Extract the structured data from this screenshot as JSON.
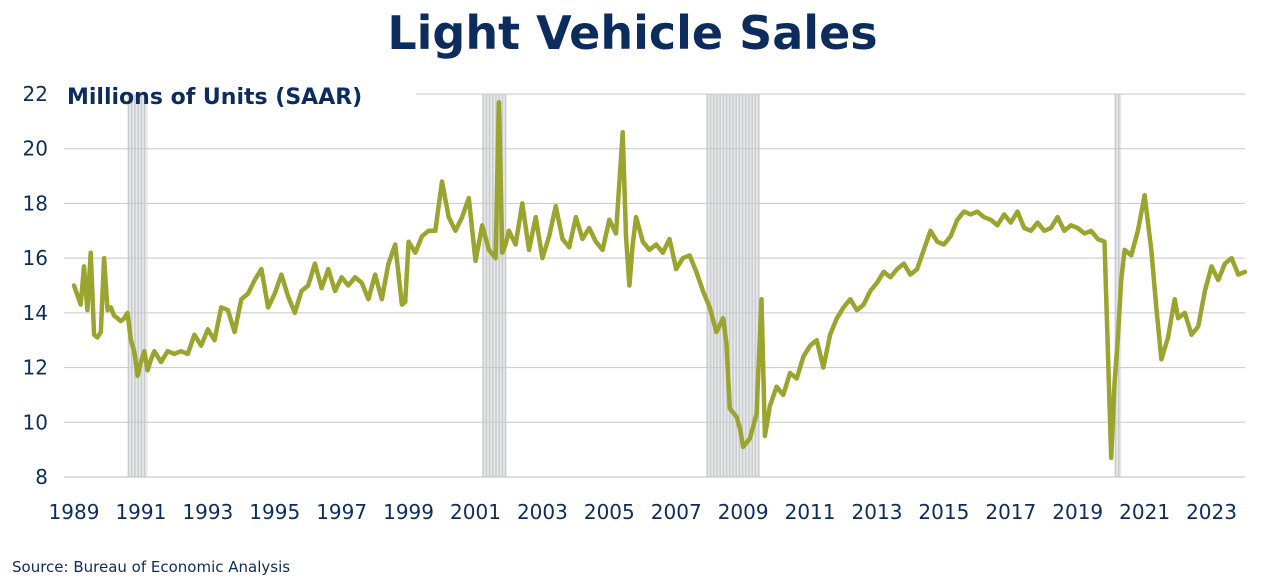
{
  "title": "Light Vehicle Sales",
  "source": "Source:  Bureau of Economic Analysis",
  "colors": {
    "line": "#9aa42e",
    "title": "#0c2c5e",
    "recession": "#c9cccf",
    "grid": "#c8c8c8"
  },
  "chart_data": {
    "type": "line",
    "title": "Light Vehicle Sales",
    "ylabel": "Millions of Units (SAAR)",
    "xlabel": "",
    "ylim": [
      8,
      22
    ],
    "xlim": [
      1989.0,
      2024.0
    ],
    "yticks": [
      8,
      10,
      12,
      14,
      16,
      18,
      20,
      22
    ],
    "xticks": [
      "1989",
      "1991",
      "1993",
      "1995",
      "1997",
      "1999",
      "2001",
      "2003",
      "2005",
      "2007",
      "2009",
      "2011",
      "2013",
      "2015",
      "2017",
      "2019",
      "2021",
      "2023"
    ],
    "grid": "horizontal",
    "recessions": [
      {
        "start": 1990.6,
        "end": 1991.2
      },
      {
        "start": 2001.2,
        "end": 2001.9
      },
      {
        "start": 2007.9,
        "end": 2009.5
      },
      {
        "start": 2020.1,
        "end": 2020.3
      }
    ],
    "series": [
      {
        "x": [
          1989.0,
          1989.2,
          1989.3,
          1989.4,
          1989.5,
          1989.6,
          1989.7,
          1989.8,
          1989.9,
          1990.0,
          1990.1,
          1990.2,
          1990.3,
          1990.4,
          1990.5,
          1990.6,
          1990.7,
          1990.8,
          1990.9,
          1991.0,
          1991.1,
          1991.2,
          1991.3,
          1991.4,
          1991.6,
          1991.8,
          1992.0,
          1992.2,
          1992.4,
          1992.6,
          1992.8,
          1993.0,
          1993.2,
          1993.4,
          1993.6,
          1993.8,
          1994.0,
          1994.2,
          1994.4,
          1994.6,
          1994.8,
          1995.0,
          1995.2,
          1995.4,
          1995.6,
          1995.8,
          1996.0,
          1996.2,
          1996.4,
          1996.6,
          1996.8,
          1997.0,
          1997.2,
          1997.4,
          1997.6,
          1997.8,
          1998.0,
          1998.2,
          1998.4,
          1998.6,
          1998.8,
          1998.9,
          1999.0,
          1999.2,
          1999.4,
          1999.6,
          1999.8,
          2000.0,
          2000.2,
          2000.4,
          2000.6,
          2000.8,
          2001.0,
          2001.2,
          2001.4,
          2001.6,
          2001.7,
          2001.8,
          2001.9,
          2002.0,
          2002.2,
          2002.4,
          2002.6,
          2002.8,
          2003.0,
          2003.2,
          2003.4,
          2003.6,
          2003.8,
          2004.0,
          2004.2,
          2004.4,
          2004.6,
          2004.8,
          2005.0,
          2005.2,
          2005.4,
          2005.5,
          2005.6,
          2005.7,
          2005.8,
          2006.0,
          2006.2,
          2006.4,
          2006.6,
          2006.8,
          2007.0,
          2007.2,
          2007.4,
          2007.6,
          2007.8,
          2008.0,
          2008.2,
          2008.4,
          2008.5,
          2008.6,
          2008.8,
          2008.9,
          2009.0,
          2009.2,
          2009.4,
          2009.55,
          2009.65,
          2009.8,
          2010.0,
          2010.2,
          2010.4,
          2010.6,
          2010.8,
          2011.0,
          2011.2,
          2011.4,
          2011.6,
          2011.8,
          2012.0,
          2012.2,
          2012.4,
          2012.6,
          2012.8,
          2013.0,
          2013.2,
          2013.4,
          2013.6,
          2013.8,
          2014.0,
          2014.2,
          2014.4,
          2014.6,
          2014.8,
          2015.0,
          2015.2,
          2015.4,
          2015.6,
          2015.8,
          2016.0,
          2016.2,
          2016.4,
          2016.6,
          2016.8,
          2017.0,
          2017.2,
          2017.4,
          2017.6,
          2017.8,
          2018.0,
          2018.2,
          2018.4,
          2018.6,
          2018.8,
          2019.0,
          2019.2,
          2019.4,
          2019.6,
          2019.8,
          2020.0,
          2020.1,
          2020.2,
          2020.3,
          2020.4,
          2020.6,
          2020.8,
          2021.0,
          2021.2,
          2021.35,
          2021.5,
          2021.7,
          2021.9,
          2022.0,
          2022.2,
          2022.4,
          2022.6,
          2022.8,
          2023.0,
          2023.2,
          2023.4,
          2023.6,
          2023.8,
          2024.0
        ],
        "values": [
          15.0,
          14.3,
          15.7,
          14.1,
          16.2,
          13.2,
          13.1,
          13.3,
          16.0,
          14.1,
          14.2,
          13.9,
          13.8,
          13.7,
          13.8,
          14.0,
          13.0,
          12.6,
          11.7,
          12.2,
          12.6,
          11.9,
          12.3,
          12.6,
          12.2,
          12.6,
          12.5,
          12.6,
          12.5,
          13.2,
          12.8,
          13.4,
          13.0,
          14.2,
          14.1,
          13.3,
          14.5,
          14.7,
          15.2,
          15.6,
          14.2,
          14.7,
          15.4,
          14.6,
          14.0,
          14.8,
          15.0,
          15.8,
          14.9,
          15.6,
          14.8,
          15.3,
          15.0,
          15.3,
          15.1,
          14.5,
          15.4,
          14.5,
          15.8,
          16.5,
          14.3,
          14.4,
          16.6,
          16.2,
          16.8,
          17.0,
          17.0,
          18.8,
          17.5,
          17.0,
          17.5,
          18.2,
          15.9,
          17.2,
          16.3,
          16.0,
          21.7,
          16.2,
          16.5,
          17.0,
          16.5,
          18.0,
          16.3,
          17.5,
          16.0,
          16.8,
          17.9,
          16.7,
          16.4,
          17.5,
          16.7,
          17.1,
          16.6,
          16.3,
          17.4,
          16.9,
          20.6,
          16.8,
          15.0,
          16.5,
          17.5,
          16.6,
          16.3,
          16.5,
          16.2,
          16.7,
          15.6,
          16.0,
          16.1,
          15.5,
          14.8,
          14.2,
          13.3,
          13.8,
          12.9,
          10.5,
          10.2,
          9.8,
          9.1,
          9.4,
          10.3,
          14.5,
          9.5,
          10.6,
          11.3,
          11.0,
          11.8,
          11.6,
          12.4,
          12.8,
          13.0,
          12.0,
          13.2,
          13.8,
          14.2,
          14.5,
          14.1,
          14.3,
          14.8,
          15.1,
          15.5,
          15.3,
          15.6,
          15.8,
          15.4,
          15.6,
          16.3,
          17.0,
          16.6,
          16.5,
          16.8,
          17.4,
          17.7,
          17.6,
          17.7,
          17.5,
          17.4,
          17.2,
          17.6,
          17.3,
          17.7,
          17.1,
          17.0,
          17.3,
          17.0,
          17.1,
          17.5,
          17.0,
          17.2,
          17.1,
          16.9,
          17.0,
          16.7,
          16.6,
          8.7,
          11.4,
          13.1,
          15.2,
          16.3,
          16.1,
          17.0,
          18.3,
          16.3,
          14.2,
          12.3,
          13.1,
          14.5,
          13.8,
          14.0,
          13.2,
          13.5,
          14.8,
          15.7,
          15.2,
          15.8,
          16.0,
          15.4,
          15.5
        ]
      }
    ]
  }
}
